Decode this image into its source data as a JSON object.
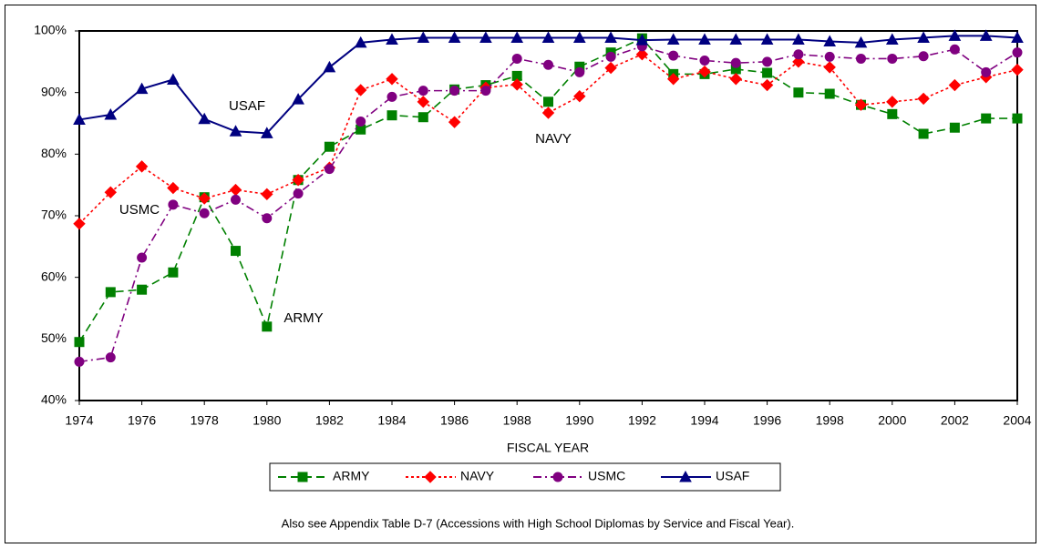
{
  "chart_data": {
    "type": "line",
    "x_label": "FISCAL YEAR",
    "x": [
      1974,
      1975,
      1976,
      1977,
      1978,
      1979,
      1980,
      1981,
      1982,
      1983,
      1984,
      1985,
      1986,
      1987,
      1988,
      1989,
      1990,
      1991,
      1992,
      1993,
      1994,
      1995,
      1996,
      1997,
      1998,
      1999,
      2000,
      2001,
      2002,
      2003,
      2004
    ],
    "xlim": [
      1974,
      2004
    ],
    "xticks": [
      1974,
      1976,
      1978,
      1980,
      1982,
      1984,
      1986,
      1988,
      1990,
      1992,
      1994,
      1996,
      1998,
      2000,
      2002,
      2004
    ],
    "ylim": [
      40,
      100
    ],
    "yticks": [
      {
        "value": 40,
        "label": "40%"
      },
      {
        "value": 50,
        "label": "50%"
      },
      {
        "value": 60,
        "label": "60%"
      },
      {
        "value": 70,
        "label": "70%"
      },
      {
        "value": 80,
        "label": "80%"
      },
      {
        "value": 90,
        "label": "90%"
      },
      {
        "value": 100,
        "label": "100%"
      }
    ],
    "grid": false,
    "legend": "bottom",
    "series": [
      {
        "name": "ARMY",
        "color": "#008000",
        "line_style": "dashed",
        "marker": "square",
        "values": [
          49.5,
          57.6,
          58,
          60.8,
          73,
          64.3,
          52,
          75.8,
          81.2,
          84,
          86.3,
          86,
          90.5,
          91.2,
          92.7,
          88.5,
          94.2,
          96.5,
          98.8,
          93,
          93,
          93.8,
          93.2,
          90,
          89.8,
          88,
          86.5,
          83.3,
          84.3,
          85.8,
          85.8
        ]
      },
      {
        "name": "NAVY",
        "color": "#ff0000",
        "line_style": "dotted",
        "marker": "diamond",
        "values": [
          68.7,
          73.8,
          78,
          74.5,
          72.8,
          74.2,
          73.5,
          75.8,
          77.8,
          90.4,
          92.2,
          88.5,
          85.2,
          90.8,
          91.3,
          86.7,
          89.4,
          94,
          96.2,
          92.2,
          93.4,
          92.2,
          91.2,
          95,
          94.1,
          88,
          88.5,
          89,
          91.2,
          92.5,
          93.7
        ]
      },
      {
        "name": "USMC",
        "color": "#800080",
        "line_style": "dashdot",
        "marker": "circle",
        "values": [
          46.3,
          47,
          63.2,
          71.8,
          70.4,
          72.6,
          69.6,
          73.6,
          77.6,
          85.3,
          89.3,
          90.3,
          90.3,
          90.3,
          95.5,
          94.5,
          93.3,
          95.8,
          97.5,
          96,
          95.2,
          94.8,
          95,
          96.2,
          95.8,
          95.5,
          95.5,
          95.9,
          97,
          93.3,
          96.5
        ]
      },
      {
        "name": "USAF",
        "color": "#000080",
        "line_style": "solid",
        "marker": "triangle",
        "values": [
          85.6,
          86.4,
          90.6,
          92.1,
          85.7,
          83.7,
          83.4,
          88.9,
          94.1,
          98.1,
          98.6,
          98.9,
          98.9,
          98.9,
          98.9,
          98.9,
          98.9,
          98.9,
          98.5,
          98.6,
          98.6,
          98.6,
          98.6,
          98.6,
          98.3,
          98.1,
          98.6,
          98.9,
          99.2,
          99.2,
          98.9
        ]
      }
    ],
    "annotations": [
      "ARMY",
      "NAVY",
      "USMC",
      "USAF"
    ],
    "note": "Also see Appendix Table D-7 (Accessions with High School Diplomas by Service and Fiscal Year)."
  }
}
